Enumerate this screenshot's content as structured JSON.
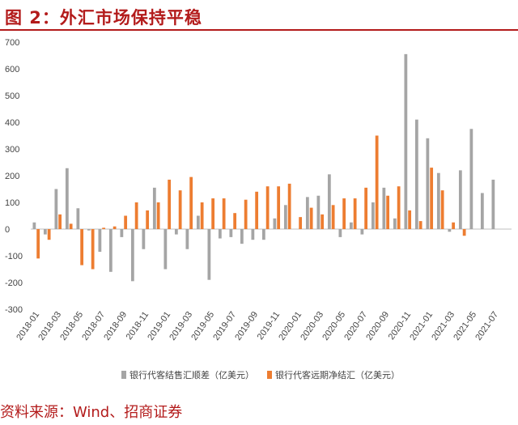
{
  "title": "图 2：外汇市场保持平稳",
  "source": "资料来源：Wind、招商证券",
  "chart_data": {
    "type": "bar",
    "ylim": [
      -300,
      700
    ],
    "yticks": [
      700,
      600,
      500,
      400,
      300,
      200,
      100,
      0,
      -100,
      -200,
      -300
    ],
    "categories": [
      "2018-01",
      "2018-02",
      "2018-03",
      "2018-04",
      "2018-05",
      "2018-06",
      "2018-07",
      "2018-08",
      "2018-09",
      "2018-10",
      "2018-11",
      "2018-12",
      "2019-01",
      "2019-02",
      "2019-03",
      "2019-04",
      "2019-05",
      "2019-06",
      "2019-07",
      "2019-08",
      "2019-09",
      "2019-10",
      "2019-11",
      "2019-12",
      "2020-01",
      "2020-02",
      "2020-03",
      "2020-04",
      "2020-05",
      "2020-06",
      "2020-07",
      "2020-08",
      "2020-09",
      "2020-10",
      "2020-11",
      "2020-12",
      "2021-01",
      "2021-02",
      "2021-03",
      "2021-04",
      "2021-05",
      "2021-06",
      "2021-07",
      "2021-08"
    ],
    "xtick_labels": [
      "2018-01",
      "2018-03",
      "2018-05",
      "2018-07",
      "2018-09",
      "2018-11",
      "2019-01",
      "2019-03",
      "2019-05",
      "2019-07",
      "2019-09",
      "2019-11",
      "2020-01",
      "2020-03",
      "2020-05",
      "2020-07",
      "2020-09",
      "2020-11",
      "2021-01",
      "2021-03",
      "2021-05",
      "2021-07"
    ],
    "series": [
      {
        "name": "银行代客结售汇顺差（亿美元）",
        "color": "#a5a5a5",
        "values": [
          25,
          -20,
          150,
          228,
          78,
          -5,
          -85,
          -160,
          -30,
          -195,
          -75,
          155,
          -150,
          -20,
          -75,
          50,
          -190,
          -35,
          -30,
          -55,
          -40,
          -40,
          40,
          90,
          0,
          120,
          125,
          205,
          -30,
          25,
          -20,
          100,
          155,
          40,
          655,
          410,
          340,
          210,
          -10,
          220,
          375,
          135,
          185,
          0
        ],
        "note": "2021-08 has no value"
      },
      {
        "name": "银行代客远期净结汇（亿美元）",
        "color": "#ed7d31",
        "values": [
          -110,
          -40,
          55,
          20,
          -135,
          -150,
          5,
          10,
          50,
          100,
          70,
          100,
          185,
          145,
          195,
          100,
          115,
          115,
          60,
          110,
          140,
          160,
          160,
          170,
          45,
          80,
          55,
          90,
          115,
          115,
          155,
          350,
          125,
          160,
          70,
          30,
          230,
          145,
          25,
          -25,
          0,
          0,
          0,
          0
        ]
      }
    ],
    "legend_position": "bottom",
    "grid": false
  }
}
